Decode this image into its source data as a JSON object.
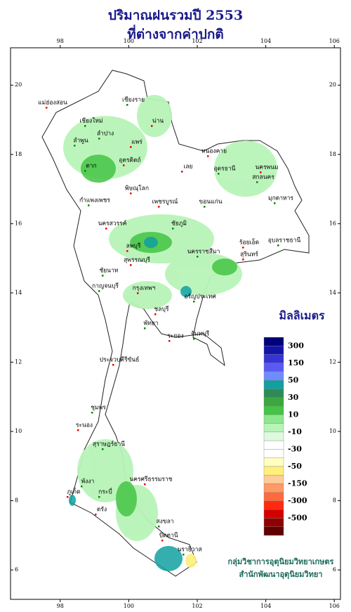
{
  "title": [
    "ปริมาณฝนรวมปี 2553",
    "ที่ต่างจากค่าปกติ"
  ],
  "map": {
    "xlim": [
      96.55,
      106.18
    ],
    "ylim": [
      5.15,
      21.08
    ],
    "xticks": [
      98,
      100,
      102,
      104,
      106
    ],
    "yticks": [
      6,
      8,
      10,
      12,
      14,
      16,
      18,
      20
    ]
  },
  "legend": {
    "title": "มิลลิเมตร",
    "labels": [
      300,
      150,
      50,
      30,
      10,
      -10,
      -30,
      -50,
      -150,
      -300,
      -500
    ],
    "colors": [
      "#00007a",
      "#1414a8",
      "#3434d8",
      "#5a5af2",
      "#6f8cff",
      "#10a0a0",
      "#2e8b57",
      "#3ea63e",
      "#44c444",
      "#8ee68e",
      "#b8f4b8",
      "#dcfadc",
      "#ffffff",
      "#ffffff",
      "#ffffc0",
      "#fff07a",
      "#ffcc99",
      "#ff9966",
      "#ff6a3d",
      "#ff2a10",
      "#d40000",
      "#900000",
      "#600000"
    ]
  },
  "provinces": [
    "เชียงราย",
    "แม่ฮ่องสอน",
    "เชียงใหม่",
    "น่าน",
    "ลำปาง",
    "แพร่",
    "ลำพูน",
    "อุตรดิตถ์",
    "ตาก",
    "หนองคาย",
    "อุดรธานี",
    "นครพนม",
    "สกลนคร",
    "เลย",
    "มุกดาหาร",
    "พิษณุโลก",
    "กำแพงเพชร",
    "เพชรบูรณ์",
    "ขอนแก่น",
    "นครสวรรค์",
    "ชัยภูมิ",
    "ร้อยเอ็ด",
    "อุบลราชธานี",
    "ลพบุรี",
    "นครราชสีมา",
    "สุรินทร์",
    "ชัยนาท",
    "สุพรรณบุรี",
    "กาญจนบุรี",
    "กรุงเทพฯ",
    "อรัญประเทศ",
    "ชลบุรี",
    "พัทยา",
    "ระยอง",
    "จันทบุรี",
    "ประจวบคีรีขันธ์",
    "ชุมพร",
    "ระนอง",
    "สุราษฎร์ธานี",
    "นครศรีธรรมราช",
    "พังงา",
    "ภูเก็ต",
    "กระบี่",
    "ตรัง",
    "สงขลา",
    "ปัตตานี",
    "นราธิวาส"
  ],
  "credits": [
    "กลุ่มวิชาการอุตุนิยมวิทยาเกษตร",
    "สำนักพัฒนาอุตุนิยมวิทยา"
  ]
}
